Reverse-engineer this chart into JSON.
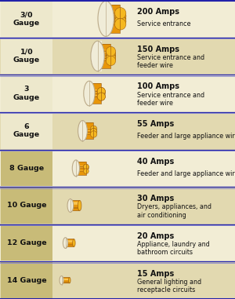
{
  "rows": [
    {
      "gauge": "3/0\nGauge",
      "amps": "200 Amps",
      "desc": "Service entrance",
      "n_strands": 7,
      "wire_scale": 1.0
    },
    {
      "gauge": "1/0\nGauge",
      "amps": "150 Amps",
      "desc": "Service entrance and\nfeeder wire",
      "n_strands": 7,
      "wire_scale": 0.85
    },
    {
      "gauge": "3\nGauge",
      "amps": "100 Amps",
      "desc": "Service entrance and\nfeeder wire",
      "n_strands": 5,
      "wire_scale": 0.7
    },
    {
      "gauge": "6\nGauge",
      "amps": "55 Amps",
      "desc": "Feeder and large appliance wire",
      "n_strands": 4,
      "wire_scale": 0.58
    },
    {
      "gauge": "8 Gauge",
      "amps": "40 Amps",
      "desc": "Feeder and large appliance wire",
      "n_strands": 3,
      "wire_scale": 0.46
    },
    {
      "gauge": "10 Gauge",
      "amps": "30 Amps",
      "desc": "Dryers, appliances, and\nair conditioning",
      "n_strands": 1,
      "wire_scale": 0.36
    },
    {
      "gauge": "12 Gauge",
      "amps": "20 Amps",
      "desc": "Appliance, laundry and\nbathroom circuits",
      "n_strands": 1,
      "wire_scale": 0.27
    },
    {
      "gauge": "14 Gauge",
      "amps": "15 Amps",
      "desc": "General lighting and\nreceptacle circuits",
      "n_strands": 1,
      "wire_scale": 0.2
    }
  ],
  "bg_light": "#F2EDD5",
  "bg_dark": "#E2D9B0",
  "gauge_bg_light": "#EDE8CC",
  "gauge_bg_dark": "#C8BB78",
  "wire_orange": "#E8960A",
  "wire_gold": "#F5B820",
  "wire_dark": "#A06010",
  "wire_highlight": "#FFD060",
  "sheath_fill": "#F0ECD8",
  "sheath_edge": "#BBAA88",
  "sep_color_outer": "#2222AA",
  "sep_color_inner": "#8888CC",
  "text_dark": "#111111",
  "text_bold_size": 7.0,
  "text_desc_size": 5.8,
  "gauge_font_size": 6.8
}
